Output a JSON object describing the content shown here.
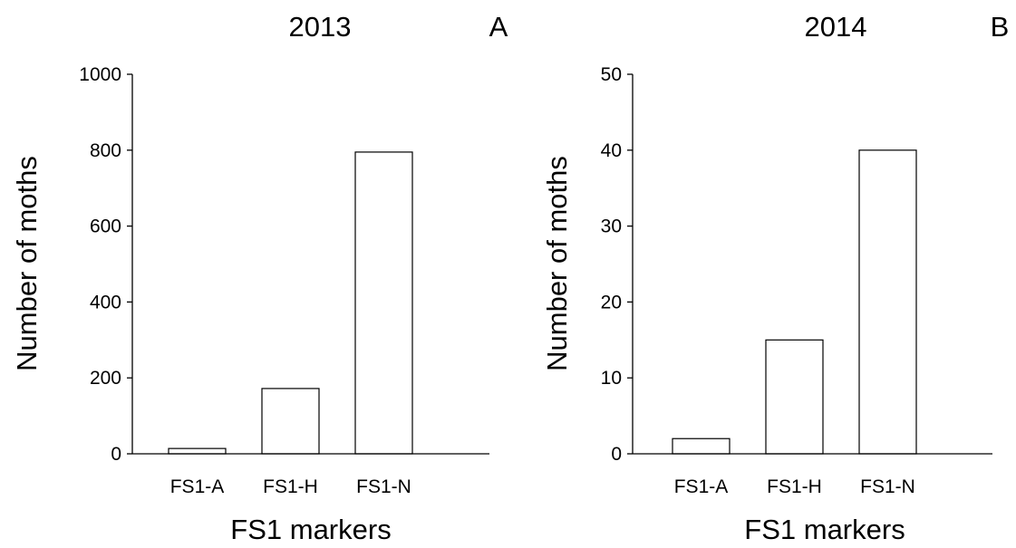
{
  "chart_data": [
    {
      "type": "bar",
      "title": "2013",
      "panel_label": "A",
      "categories": [
        "FS1-A",
        "FS1-H",
        "FS1-N"
      ],
      "values": [
        14,
        172,
        795
      ],
      "xlabel": "FS1 markers",
      "ylabel": "Number of moths",
      "ylim": [
        0,
        1000
      ],
      "yticks": [
        0,
        200,
        400,
        600,
        800,
        1000
      ],
      "grid": false,
      "bar_fill": "#ffffff",
      "bar_stroke": "#000000"
    },
    {
      "type": "bar",
      "title": "2014",
      "panel_label": "B",
      "categories": [
        "FS1-A",
        "FS1-H",
        "FS1-N"
      ],
      "values": [
        2,
        15,
        40
      ],
      "xlabel": "FS1 markers",
      "ylabel": "Number of moths",
      "ylim": [
        0,
        50
      ],
      "yticks": [
        0,
        10,
        20,
        30,
        40,
        50
      ],
      "grid": false,
      "bar_fill": "#ffffff",
      "bar_stroke": "#000000"
    }
  ]
}
